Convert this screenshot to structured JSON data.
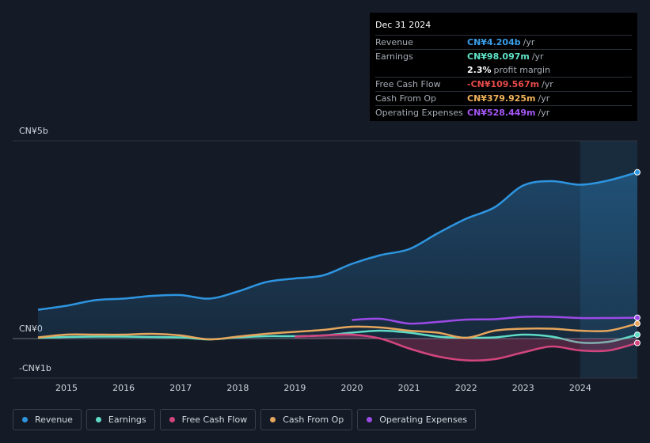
{
  "chart_data": {
    "type": "line",
    "x": [
      2014.5,
      2015,
      2015.5,
      2016,
      2016.5,
      2017,
      2017.5,
      2018,
      2018.5,
      2019,
      2019.5,
      2020,
      2020.5,
      2021,
      2021.5,
      2022,
      2022.5,
      2023,
      2023.5,
      2024,
      2024.5,
      2025
    ],
    "xlim": [
      2014.5,
      2025
    ],
    "xticks": [
      2015,
      2016,
      2017,
      2018,
      2019,
      2020,
      2021,
      2022,
      2023,
      2024
    ],
    "ylim": [
      -1,
      5
    ],
    "yticks": [
      {
        "value": 5,
        "label": "CN¥5b"
      },
      {
        "value": 0,
        "label": "CN¥0"
      },
      {
        "value": -1,
        "label": "-CN¥1b"
      }
    ],
    "series": [
      {
        "name": "Revenue",
        "color": "#2e95e0",
        "area": true,
        "values": [
          0.73,
          0.83,
          0.97,
          1.01,
          1.08,
          1.1,
          1.01,
          1.19,
          1.43,
          1.52,
          1.6,
          1.89,
          2.11,
          2.26,
          2.66,
          3.03,
          3.32,
          3.87,
          3.98,
          3.89,
          4.0,
          4.204
        ]
      },
      {
        "name": "Earnings",
        "color": "#5fdcc6",
        "values": [
          0.02,
          0.04,
          0.05,
          0.05,
          0.04,
          0.03,
          -0.02,
          0.03,
          0.06,
          0.06,
          0.08,
          0.15,
          0.2,
          0.15,
          0.05,
          0.02,
          0.03,
          0.1,
          0.05,
          -0.1,
          -0.08,
          0.098
        ]
      },
      {
        "name": "Free Cash Flow",
        "color": "#d2457d",
        "area": true,
        "values": [
          null,
          null,
          null,
          null,
          null,
          null,
          null,
          null,
          null,
          0.05,
          0.08,
          0.1,
          0.0,
          -0.25,
          -0.45,
          -0.55,
          -0.52,
          -0.35,
          -0.2,
          -0.3,
          -0.3,
          -0.11
        ]
      },
      {
        "name": "Cash From Op",
        "color": "#e6a65c",
        "values": [
          0.03,
          0.1,
          0.1,
          0.1,
          0.12,
          0.08,
          -0.02,
          0.05,
          0.12,
          0.17,
          0.22,
          0.3,
          0.28,
          0.2,
          0.15,
          0.02,
          0.2,
          0.25,
          0.25,
          0.2,
          0.2,
          0.38
        ]
      },
      {
        "name": "Operating Expenses",
        "color": "#9b4ae6",
        "values": [
          null,
          null,
          null,
          null,
          null,
          null,
          null,
          null,
          null,
          null,
          null,
          0.47,
          0.5,
          0.38,
          0.42,
          0.48,
          0.49,
          0.55,
          0.55,
          0.52,
          0.52,
          0.528
        ]
      }
    ]
  },
  "tooltip": {
    "date": "Dec 31 2024",
    "rows": [
      {
        "label": "Revenue",
        "value": "CN¥4.204b",
        "unit": "/yr",
        "color": "#3a9fea"
      },
      {
        "label": "Earnings",
        "value": "CN¥98.097m",
        "unit": "/yr",
        "color": "#5fe3c8"
      },
      {
        "label": "",
        "value": "2.3%",
        "unit": "profit margin",
        "color": "#ffffff"
      },
      {
        "label": "Free Cash Flow",
        "value": "-CN¥109.567m",
        "unit": "/yr",
        "color": "#e84a4a"
      },
      {
        "label": "Cash From Op",
        "value": "CN¥379.925m",
        "unit": "/yr",
        "color": "#f0b25a"
      },
      {
        "label": "Operating Expenses",
        "value": "CN¥528.449m",
        "unit": "/yr",
        "color": "#a457f5"
      }
    ]
  }
}
